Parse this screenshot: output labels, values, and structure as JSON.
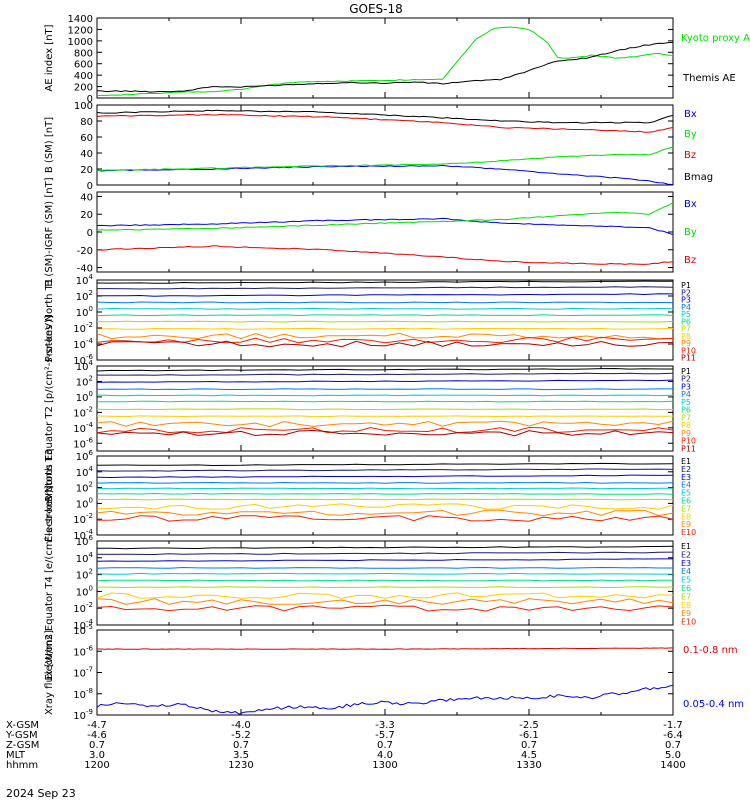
{
  "title": "GOES-18",
  "date_label": "2024 Sep 23",
  "footer": {
    "rows": [
      {
        "label": "X-GSM",
        "values": [
          "-4.7",
          "-4.0",
          "-3.3",
          "-2.5",
          "-1.7"
        ]
      },
      {
        "label": "Y-GSM",
        "values": [
          "-4.6",
          "-5.2",
          "-5.7",
          "-6.1",
          "-6.4"
        ]
      },
      {
        "label": "Z-GSM",
        "values": [
          "0.7",
          "0.7",
          "0.7",
          "0.7",
          "0.7"
        ]
      },
      {
        "label": "MLT",
        "values": [
          "3.0",
          "3.5",
          "4.0",
          "4.5",
          "5.0"
        ]
      },
      {
        "label": "hhmm",
        "values": [
          "1200",
          "1230",
          "1300",
          "1330",
          "1400"
        ]
      }
    ]
  },
  "colors": {
    "black": "#000000",
    "green": "#00e000",
    "blue": "#0000ee",
    "red": "#dd0000",
    "level_colors": [
      "#000000",
      "#1a1a6e",
      "#0000cc",
      "#0077ff",
      "#00cccc",
      "#00dd88",
      "#aadd00",
      "#ffcc00",
      "#ff8800",
      "#ee2200",
      "#aa0000"
    ]
  },
  "chart_data": [
    {
      "type": "line",
      "ylabel": "AE index [nT]",
      "yticks": [
        "0",
        "200",
        "400",
        "600",
        "800",
        "1000",
        "1200",
        "1400"
      ],
      "ylim": [
        0,
        1400
      ],
      "x_range_hhmm": [
        "1200",
        "1400"
      ],
      "series": [
        {
          "name": "Kyoto proxy AE",
          "color": "#00e000",
          "x": [
            0,
            0.05,
            0.1,
            0.15,
            0.2,
            0.25,
            0.3,
            0.35,
            0.4,
            0.45,
            0.5,
            0.55,
            0.6,
            0.63,
            0.66,
            0.69,
            0.72,
            0.75,
            0.78,
            0.8,
            0.83,
            0.86,
            0.9,
            0.94,
            0.97,
            1.0
          ],
          "y": [
            50,
            60,
            80,
            100,
            110,
            150,
            230,
            280,
            290,
            300,
            310,
            320,
            330,
            700,
            1050,
            1220,
            1250,
            1200,
            1000,
            700,
            700,
            750,
            700,
            730,
            780,
            750
          ]
        },
        {
          "name": "Themis AE",
          "color": "#000000",
          "x": [
            0,
            0.05,
            0.1,
            0.15,
            0.2,
            0.25,
            0.3,
            0.35,
            0.4,
            0.45,
            0.5,
            0.55,
            0.6,
            0.65,
            0.7,
            0.75,
            0.8,
            0.85,
            0.9,
            0.95,
            1.0
          ],
          "y": [
            120,
            120,
            110,
            120,
            200,
            190,
            220,
            240,
            260,
            270,
            260,
            280,
            250,
            300,
            320,
            480,
            650,
            700,
            820,
            920,
            980
          ]
        }
      ]
    },
    {
      "type": "line",
      "ylabel": "B (SM) [nT]",
      "yticks": [
        "0",
        "20",
        "40",
        "60",
        "80",
        "100"
      ],
      "ylim": [
        0,
        100
      ],
      "x_range_hhmm": [
        "1200",
        "1400"
      ],
      "series": [
        {
          "name": "Bx",
          "color": "#0000ee",
          "x": [
            0,
            0.2,
            0.4,
            0.6,
            0.7,
            0.8,
            0.9,
            0.96,
            1.0
          ],
          "y": [
            18,
            20,
            23,
            24,
            20,
            14,
            9,
            5,
            0
          ]
        },
        {
          "name": "By",
          "color": "#00e000",
          "x": [
            0,
            0.2,
            0.4,
            0.6,
            0.7,
            0.8,
            0.9,
            0.96,
            1.0
          ],
          "y": [
            18,
            21,
            24,
            26,
            30,
            35,
            38,
            38,
            48
          ]
        },
        {
          "name": "Bz",
          "color": "#dd0000",
          "x": [
            0,
            0.2,
            0.4,
            0.6,
            0.7,
            0.8,
            0.9,
            0.96,
            1.0
          ],
          "y": [
            86,
            88,
            85,
            78,
            72,
            70,
            68,
            66,
            72
          ]
        },
        {
          "name": "Bmag",
          "color": "#000000",
          "x": [
            0,
            0.2,
            0.4,
            0.6,
            0.7,
            0.8,
            0.9,
            0.96,
            1.0
          ],
          "y": [
            90,
            93,
            91,
            84,
            80,
            78,
            78,
            78,
            87
          ]
        }
      ]
    },
    {
      "type": "line",
      "ylabel": "B (SM)-IGRF (SM) [nT]",
      "yticks": [
        "-40",
        "-20",
        "0",
        "20",
        "40"
      ],
      "ylim": [
        -45,
        45
      ],
      "x_range_hhmm": [
        "1200",
        "1400"
      ],
      "series": [
        {
          "name": "Bx",
          "color": "#0000ee",
          "x": [
            0,
            0.2,
            0.4,
            0.6,
            0.7,
            0.8,
            0.9,
            0.96,
            1.0
          ],
          "y": [
            7,
            9,
            13,
            15,
            10,
            8,
            6,
            5,
            -3
          ]
        },
        {
          "name": "By",
          "color": "#00e000",
          "x": [
            0,
            0.2,
            0.4,
            0.6,
            0.7,
            0.8,
            0.9,
            0.96,
            1.0
          ],
          "y": [
            2,
            4,
            8,
            12,
            14,
            18,
            22,
            20,
            33
          ]
        },
        {
          "name": "Bz",
          "color": "#dd0000",
          "x": [
            0,
            0.2,
            0.4,
            0.6,
            0.7,
            0.8,
            0.9,
            0.96,
            1.0
          ],
          "y": [
            -20,
            -16,
            -20,
            -28,
            -33,
            -35,
            -36,
            -36,
            -33
          ]
        }
      ]
    },
    {
      "type": "line",
      "ylabel": "Protons North T1",
      "scale": "log",
      "yticks": [
        "10^4",
        "10^2",
        "10^0",
        "10^-2",
        "10^-4",
        "10^-6"
      ],
      "ylim_exponent": [
        -6,
        4
      ],
      "x_range_hhmm": [
        "1200",
        "1400"
      ],
      "channel_log_levels": [
        3.6,
        2.9,
        2.0,
        1.2,
        0.4,
        -0.4,
        -1.2,
        -2.1,
        -3.0,
        -3.5,
        -4.0
      ],
      "series_names": [
        "P1",
        "P2",
        "P3",
        "P4",
        "P5",
        "P6",
        "P7",
        "P8",
        "P9",
        "P10",
        "P11"
      ]
    },
    {
      "type": "line",
      "ylabel": "Protons Equator T2 [p/(cm²-s-sr-keV)]",
      "scale": "log",
      "yticks": [
        "10^4",
        "10^2",
        "10^0",
        "10^-2",
        "10^-4",
        "10^-6"
      ],
      "ylim_exponent": [
        -7,
        4
      ],
      "x_range_hhmm": [
        "1200",
        "1400"
      ],
      "channel_log_levels": [
        3.4,
        2.8,
        1.9,
        1.0,
        0.2,
        -0.6,
        -1.6,
        -2.5,
        -3.5,
        -4.3,
        -4.7
      ],
      "series_names": [
        "P1",
        "P2",
        "P3",
        "P4",
        "P5",
        "P6",
        "P7",
        "P8",
        "P9",
        "P10",
        "P11"
      ]
    },
    {
      "type": "line",
      "ylabel": "Electrons North T3",
      "scale": "log",
      "yticks": [
        "10^6",
        "10^4",
        "10^2",
        "10^0",
        "10^-2",
        "10^-4"
      ],
      "ylim_exponent": [
        -4,
        6
      ],
      "x_range_hhmm": [
        "1200",
        "1400"
      ],
      "channel_log_levels": [
        4.8,
        4.1,
        3.3,
        2.6,
        1.9,
        1.2,
        0.5,
        -0.4,
        -1.2,
        -1.9
      ],
      "series_names": [
        "E1",
        "E2",
        "E3",
        "E4",
        "E5",
        "E6",
        "E7",
        "E8",
        "E9",
        "E10"
      ]
    },
    {
      "type": "line",
      "ylabel": "Electrons Equator T4 [e/(cm²-s-sr-keV)]",
      "scale": "log",
      "yticks": [
        "10^6",
        "10^4",
        "10^2",
        "10^0",
        "10^-2",
        "10^-4"
      ],
      "ylim_exponent": [
        -4,
        6
      ],
      "x_range_hhmm": [
        "1200",
        "1400"
      ],
      "channel_log_levels": [
        5.1,
        4.4,
        3.6,
        2.8,
        2.1,
        1.3,
        0.5,
        -0.5,
        -1.2,
        -2.0
      ],
      "series_names": [
        "E1",
        "E2",
        "E3",
        "E4",
        "E5",
        "E6",
        "E7",
        "E8",
        "E9",
        "E10"
      ]
    },
    {
      "type": "line",
      "ylabel": "Xray flux [W/m2]",
      "scale": "log",
      "yticks": [
        "10^-5",
        "10^-6",
        "10^-7",
        "10^-8",
        "10^-9"
      ],
      "ylim_exponent": [
        -9,
        -5
      ],
      "x_range_hhmm": [
        "1200",
        "1400"
      ],
      "series": [
        {
          "name": "0.1-0.8 nm",
          "color": "#dd0000",
          "x": [
            0,
            0.5,
            1.0
          ],
          "y_exponent": [
            -5.9,
            -5.9,
            -5.85
          ]
        },
        {
          "name": "0.05-0.4 nm",
          "color": "#0000ee",
          "x": [
            0,
            0.05,
            0.1,
            0.15,
            0.2,
            0.25,
            0.3,
            0.35,
            0.4,
            0.45,
            0.5,
            0.55,
            0.6,
            0.65,
            0.7,
            0.75,
            0.8,
            0.85,
            0.9,
            0.95,
            1.0
          ],
          "y_exponent": [
            -8.6,
            -8.4,
            -8.6,
            -8.5,
            -8.8,
            -8.9,
            -8.7,
            -8.6,
            -8.7,
            -8.5,
            -8.4,
            -8.5,
            -8.3,
            -8.2,
            -8.2,
            -8.2,
            -8.1,
            -8.2,
            -8.0,
            -7.8,
            -7.6
          ]
        }
      ]
    }
  ]
}
